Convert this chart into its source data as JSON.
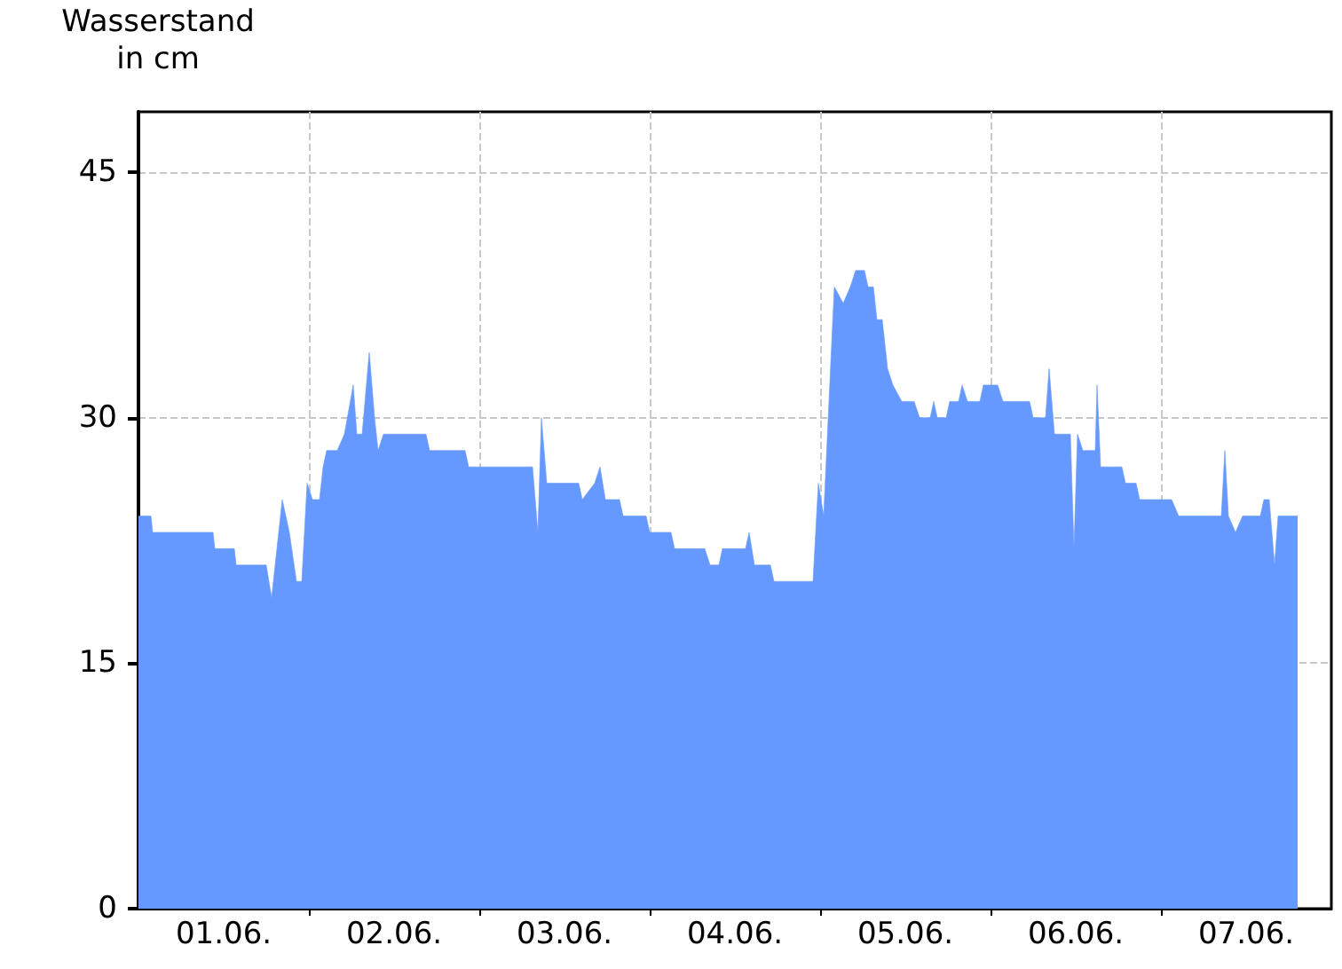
{
  "chart_data": {
    "type": "area",
    "ylabel": "Wasserstand\nin cm",
    "grid": true,
    "marker": "none",
    "line_style": "solid",
    "xlim": [
      "--06-01",
      "--06-08"
    ],
    "ylim": [
      0,
      48.7
    ],
    "yticks": [
      0,
      15,
      30,
      45
    ],
    "xticks": [
      {
        "value": "--06-01T12:00",
        "label": "01.06."
      },
      {
        "value": "--06-02T12:00",
        "label": "02.06."
      },
      {
        "value": "--06-03T12:00",
        "label": "03.06."
      },
      {
        "value": "--06-04T12:00",
        "label": "04.06."
      },
      {
        "value": "--06-05T12:00",
        "label": "05.06."
      },
      {
        "value": "--06-06T12:00",
        "label": "06.06."
      },
      {
        "value": "--06-07T12:00",
        "label": "07.06."
      },
      {
        "value": "--06-02",
        "label": null
      },
      {
        "value": "--06-03",
        "label": null
      },
      {
        "value": "--06-04",
        "label": null
      },
      {
        "value": "--06-05",
        "label": null
      },
      {
        "value": "--06-06",
        "label": null
      },
      {
        "value": "--06-07",
        "label": null
      }
    ],
    "series": [
      {
        "color": "#6699ff",
        "x": [
          "--06-01T00:00",
          "--06-01T01:45",
          "--06-01T02:00",
          "--06-01T10:30",
          "--06-01T10:45",
          "--06-01T13:30",
          "--06-01T13:45",
          "--06-01T18:00",
          "--06-01T18:45",
          "--06-01T19:30",
          "--06-01T20:15",
          "--06-01T21:15",
          "--06-01T22:15",
          "--06-01T23:00",
          "--06-01T23:45",
          "--06-02T00:30",
          "--06-02T01:30",
          "--06-02T02:00",
          "--06-02T02:30",
          "--06-02T04:00",
          "--06-02T05:00",
          "--06-02T06:15",
          "--06-02T06:45",
          "--06-02T07:30",
          "--06-02T08:30",
          "--06-02T09:15",
          "--06-02T09:45",
          "--06-02T10:30",
          "--06-02T16:30",
          "--06-02T17:00",
          "--06-02T22:00",
          "--06-02T22:30",
          "--06-03T07:30",
          "--06-03T08:15",
          "--06-03T08:45",
          "--06-03T09:30",
          "--06-03T14:00",
          "--06-03T14:30",
          "--06-03T16:15",
          "--06-03T17:00",
          "--06-03T17:45",
          "--06-03T19:45",
          "--06-03T20:15",
          "--06-03T23:30",
          "--06-04T00:00",
          "--06-04T03:00",
          "--06-04T03:30",
          "--06-04T07:45",
          "--06-04T08:30",
          "--06-04T09:45",
          "--06-04T10:15",
          "--06-04T13:30",
          "--06-04T14:00",
          "--06-04T14:45",
          "--06-04T17:00",
          "--06-04T17:30",
          "--06-04T23:00",
          "--06-04T23:45",
          "--06-05T00:30",
          "--06-05T02:00",
          "--06-05T03:15",
          "--06-05T04:15",
          "--06-05T05:00",
          "--06-05T06:15",
          "--06-05T06:45",
          "--06-05T07:30",
          "--06-05T08:00",
          "--06-05T08:45",
          "--06-05T09:30",
          "--06-05T10:15",
          "--06-05T11:30",
          "--06-05T13:15",
          "--06-05T14:00",
          "--06-05T15:30",
          "--06-05T16:00",
          "--06-05T16:30",
          "--06-05T17:45",
          "--06-05T18:15",
          "--06-05T19:30",
          "--06-05T20:00",
          "--06-05T20:45",
          "--06-05T22:30",
          "--06-05T23:00",
          "--06-06T01:00",
          "--06-06T01:45",
          "--06-06T05:30",
          "--06-06T06:00",
          "--06-06T07:45",
          "--06-06T08:15",
          "--06-06T09:00",
          "--06-06T11:15",
          "--06-06T11:45",
          "--06-06T12:15",
          "--06-06T13:00",
          "--06-06T14:45",
          "--06-06T15:00",
          "--06-06T15:30",
          "--06-06T18:30",
          "--06-06T19:00",
          "--06-06T20:30",
          "--06-06T21:00",
          "--06-07T01:30",
          "--06-07T02:30",
          "--06-07T08:30",
          "--06-07T09:00",
          "--06-07T09:30",
          "--06-07T10:30",
          "--06-07T11:30",
          "--06-07T14:00",
          "--06-07T14:30",
          "--06-07T15:15",
          "--06-07T16:00",
          "--06-07T16:30",
          "--06-07T19:15"
        ],
        "values": [
          24,
          24,
          23,
          23,
          22,
          22,
          21,
          21,
          19,
          22,
          25,
          23,
          20,
          20,
          26,
          25,
          25,
          27,
          28,
          28,
          29,
          32,
          29,
          29,
          34,
          30,
          28,
          29,
          29,
          28,
          28,
          27,
          27,
          23,
          30,
          26,
          26,
          25,
          26,
          27,
          25,
          25,
          24,
          24,
          23,
          23,
          22,
          22,
          21,
          21,
          22,
          22,
          23,
          21,
          21,
          20,
          20,
          26,
          24,
          38,
          37,
          38,
          39,
          39,
          38,
          38,
          36,
          36,
          33,
          32,
          31,
          31,
          30,
          30,
          31,
          30,
          30,
          31,
          31,
          32,
          31,
          31,
          32,
          32,
          31,
          31,
          30,
          30,
          33,
          29,
          29,
          22,
          29,
          28,
          28,
          32,
          27,
          27,
          26,
          26,
          25,
          25,
          24,
          24,
          28,
          24,
          23,
          24,
          24,
          25,
          25,
          21,
          24,
          24
        ]
      }
    ]
  }
}
